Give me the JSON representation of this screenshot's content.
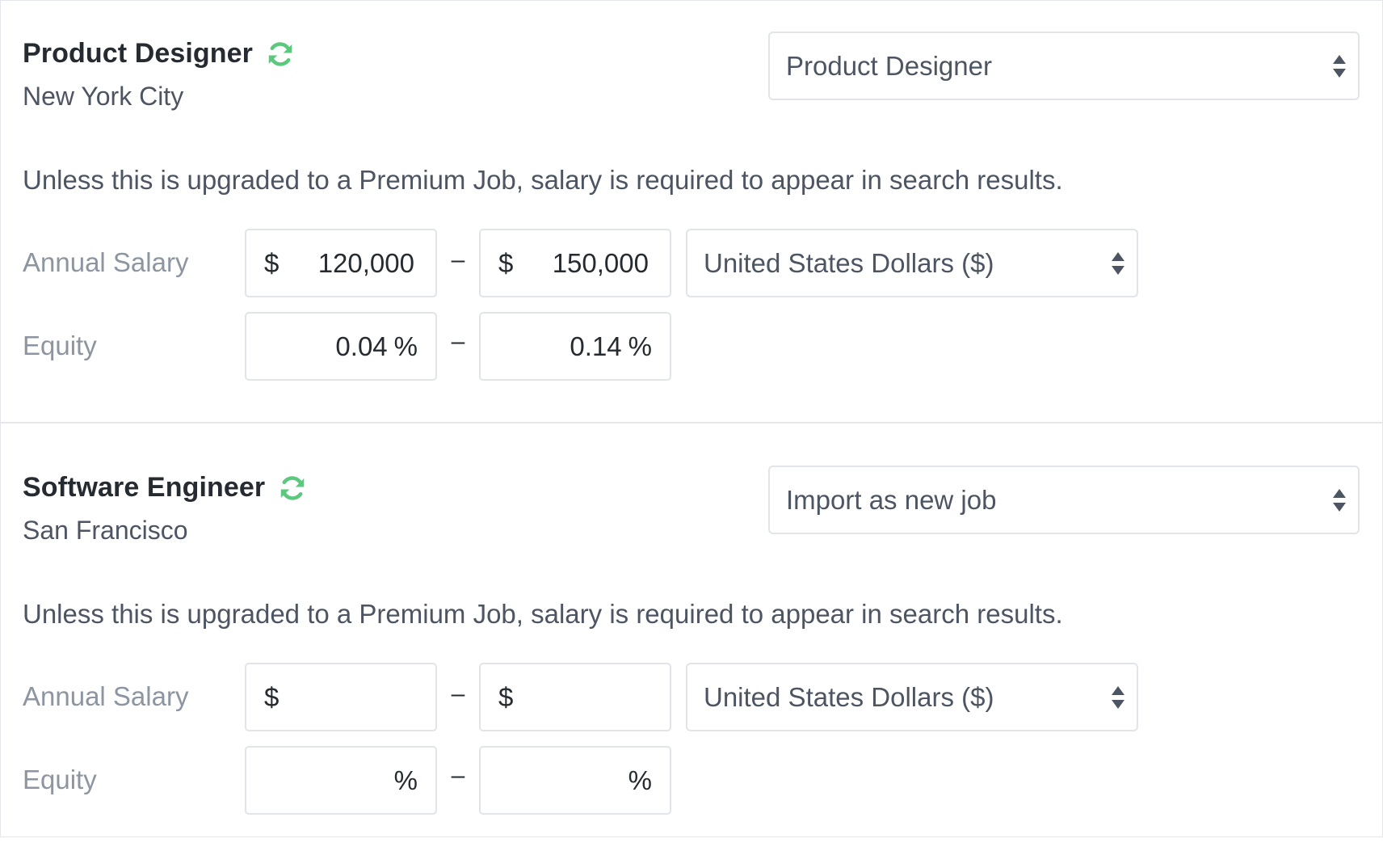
{
  "jobs": [
    {
      "title": "Product Designer",
      "location": "New York City",
      "mapping_selected": "Product Designer",
      "notice": "Unless this is upgraded to a Premium Job, salary is required to appear in search results.",
      "salary_label": "Annual Salary",
      "salary_prefix": "$",
      "salary_min": "120,000",
      "salary_max": "150,000",
      "range_separator": "–",
      "currency_selected": "United States Dollars ($)",
      "equity_label": "Equity",
      "equity_suffix": "%",
      "equity_min": "0.04",
      "equity_max": "0.14"
    },
    {
      "title": "Software Engineer",
      "location": "San Francisco",
      "mapping_selected": "Import as new job",
      "notice": "Unless this is upgraded to a Premium Job, salary is required to appear in search results.",
      "salary_label": "Annual Salary",
      "salary_prefix": "$",
      "salary_min": "",
      "salary_max": "",
      "range_separator": "–",
      "currency_selected": "United States Dollars ($)",
      "equity_label": "Equity",
      "equity_suffix": "%",
      "equity_min": "",
      "equity_max": ""
    }
  ],
  "icons": {
    "sync": "sync-icon",
    "select_arrows": "select-arrows-icon"
  },
  "colors": {
    "sync_icon": "#5cc87e",
    "text": "#262b31",
    "muted": "#8d95a1",
    "border": "#e1e4e8"
  }
}
